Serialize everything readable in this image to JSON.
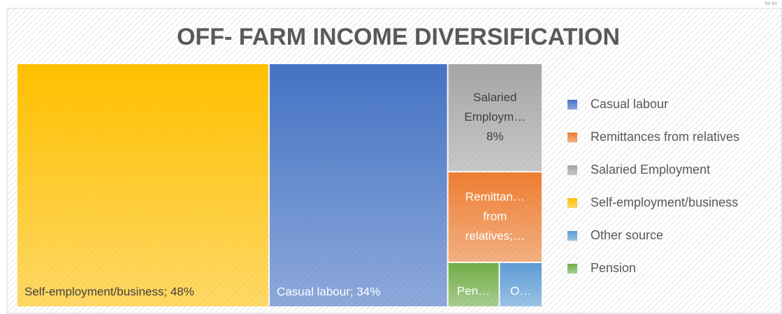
{
  "corner_note": "for im",
  "chart_data": {
    "type": "treemap",
    "title": "OFF- FARM INCOME DIVERSIFICATION",
    "series": [
      {
        "name": "Casual labour",
        "color": "#4472c4",
        "value": 34
      },
      {
        "name": "Remittances from relatives",
        "color": "#ed7d31",
        "value": 6.7
      },
      {
        "name": "Salaried Employment",
        "color": "#a5a5a5",
        "value": 8
      },
      {
        "name": "Self-employment/business",
        "color": "#ffc000",
        "value": 48
      },
      {
        "name": "Other source",
        "color": "#5b9bd5",
        "value": 1.5
      },
      {
        "name": "Pension",
        "color": "#70ad47",
        "value": 1.8
      }
    ],
    "value_labels": [
      [
        "Casual labour; 34%"
      ],
      [
        "Remittan…",
        "from",
        "relatives;…"
      ],
      [
        "Salaried",
        "Employm…",
        "8%"
      ],
      [
        "Self-employment/business; 48%"
      ],
      [
        "O…"
      ],
      [
        "Pen…"
      ]
    ],
    "legend": "right"
  }
}
